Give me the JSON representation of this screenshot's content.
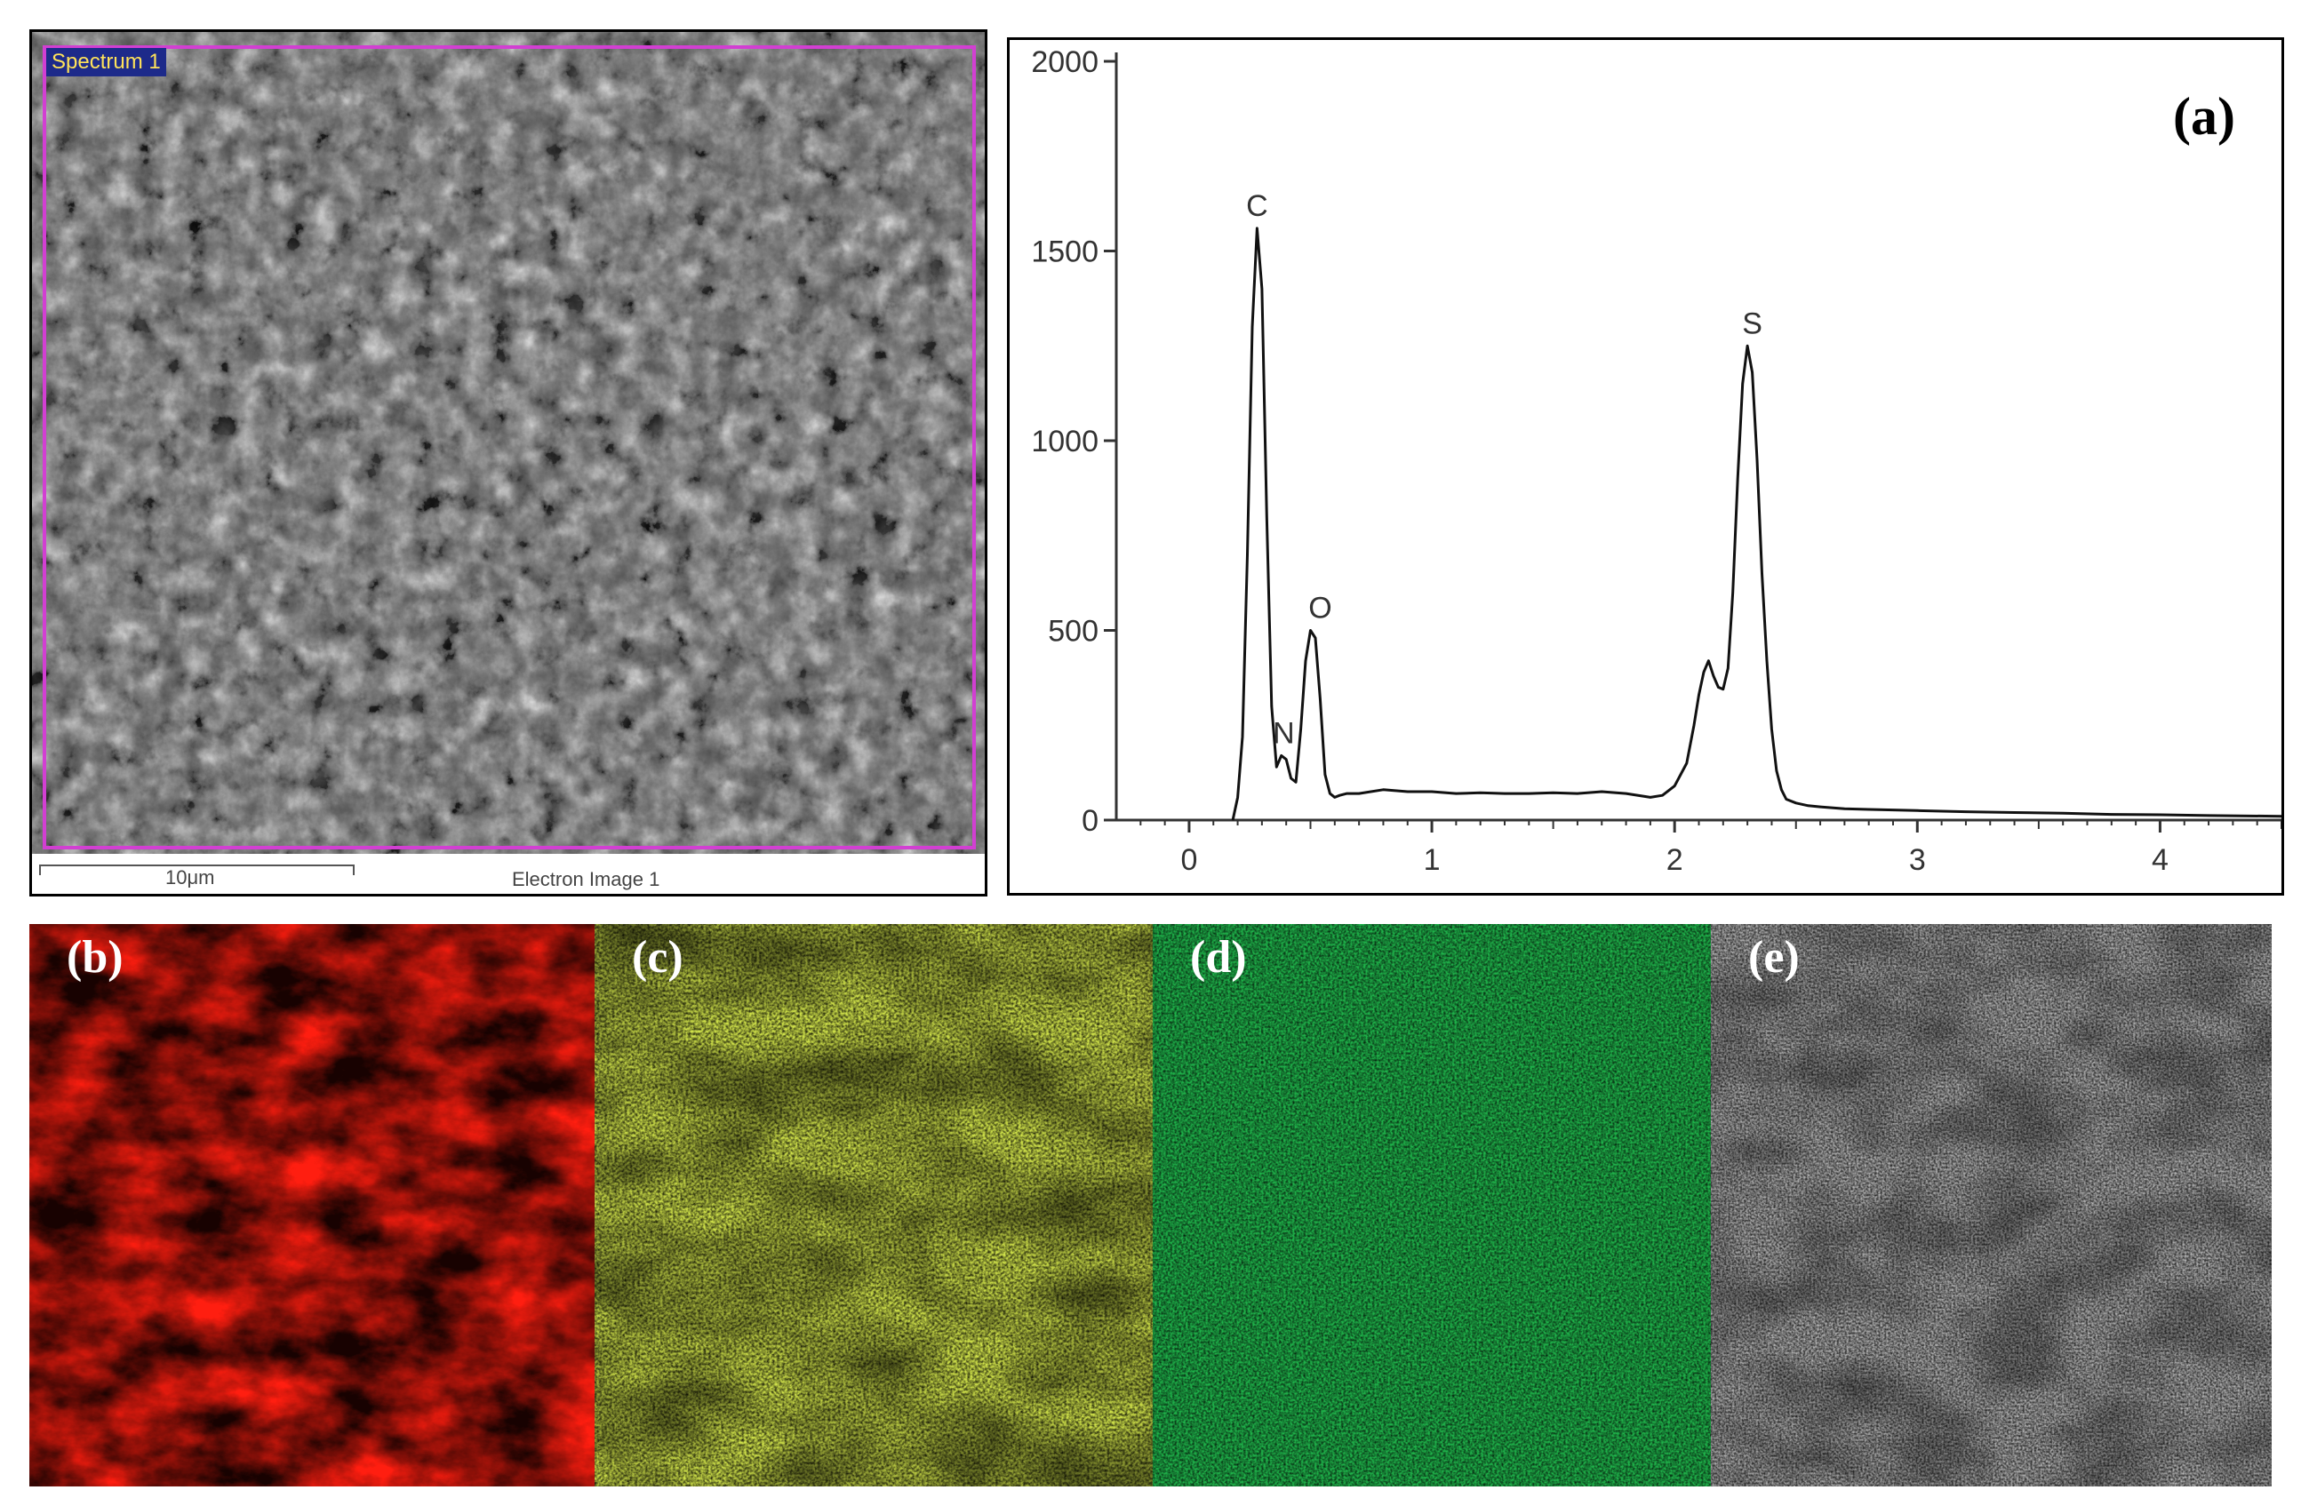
{
  "sem": {
    "spectrum_label": "Spectrum 1",
    "scalebar_label": "10μm",
    "image_caption": "Electron Image 1"
  },
  "spectrum": {
    "panel_label": "(a)",
    "chart_data": {
      "type": "line",
      "xlim": [
        -0.3,
        4.5
      ],
      "ylim": [
        0,
        2000
      ],
      "x_ticks": [
        0,
        1,
        2,
        3,
        4
      ],
      "y_ticks": [
        0,
        500,
        1000,
        1500,
        2000
      ],
      "grid": false,
      "xlabel": "",
      "ylabel": "",
      "series": [
        {
          "x": [
            0.18,
            0.2,
            0.22,
            0.24,
            0.26,
            0.28,
            0.3,
            0.32,
            0.34,
            0.36,
            0.38,
            0.4,
            0.42,
            0.44,
            0.46,
            0.48,
            0.5,
            0.52,
            0.54,
            0.56,
            0.58,
            0.6,
            0.62,
            0.65,
            0.7,
            0.8,
            0.9,
            1.0,
            1.1,
            1.2,
            1.3,
            1.4,
            1.5,
            1.6,
            1.7,
            1.8,
            1.9,
            1.95,
            2.0,
            2.05,
            2.08,
            2.1,
            2.12,
            2.14,
            2.16,
            2.18,
            2.2,
            2.22,
            2.24,
            2.26,
            2.28,
            2.3,
            2.32,
            2.34,
            2.36,
            2.38,
            2.4,
            2.42,
            2.44,
            2.46,
            2.5,
            2.55,
            2.6,
            2.7,
            2.8,
            3.0,
            3.2,
            3.4,
            3.6,
            3.8,
            4.0,
            4.2,
            4.5
          ],
          "y": [
            0,
            60,
            220,
            700,
            1300,
            1560,
            1400,
            800,
            300,
            140,
            170,
            160,
            110,
            100,
            240,
            420,
            500,
            480,
            320,
            120,
            70,
            60,
            65,
            70,
            70,
            80,
            75,
            75,
            70,
            72,
            70,
            70,
            72,
            70,
            75,
            70,
            60,
            65,
            90,
            150,
            250,
            330,
            390,
            420,
            380,
            350,
            345,
            400,
            600,
            900,
            1150,
            1250,
            1180,
            950,
            650,
            420,
            240,
            130,
            80,
            55,
            45,
            38,
            35,
            30,
            28,
            25,
            22,
            20,
            18,
            15,
            14,
            12,
            10
          ]
        }
      ],
      "annotations": [
        {
          "text": "C",
          "x": 0.28,
          "y": 1560
        },
        {
          "text": "N",
          "x": 0.39,
          "y": 170
        },
        {
          "text": "O",
          "x": 0.54,
          "y": 500
        },
        {
          "text": "S",
          "x": 2.32,
          "y": 1250
        }
      ]
    }
  },
  "maps": [
    {
      "label": "(b)",
      "color": "#ff1e10"
    },
    {
      "label": "(c)",
      "color": "#cfe14a"
    },
    {
      "label": "(d)",
      "color": "#1fb24a"
    },
    {
      "label": "(e)",
      "color": "#b8b8b8"
    }
  ]
}
